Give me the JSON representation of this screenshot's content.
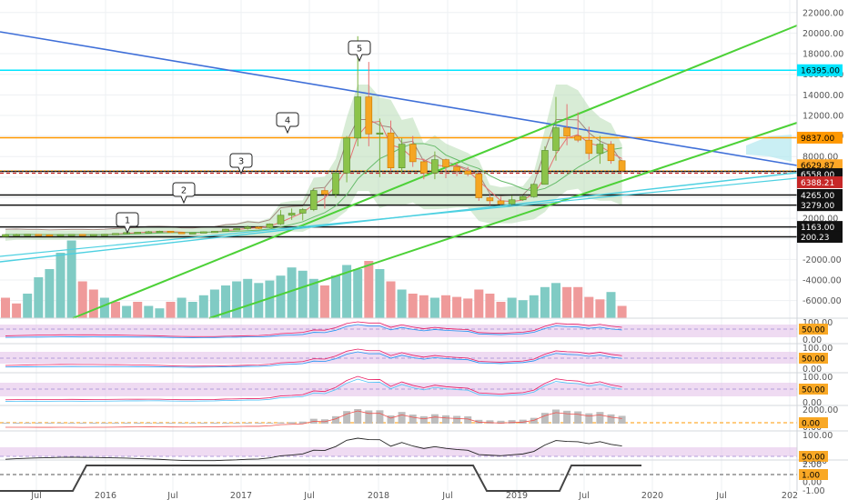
{
  "chart_data": {
    "type": "candlestick",
    "x_ticks": [
      "Jul",
      "2016",
      "Jul",
      "2017",
      "Jul",
      "2018",
      "Jul",
      "2019",
      "Jul",
      "2020",
      "Jul",
      "202"
    ],
    "y_ticks": [
      "22000.00",
      "20000.00",
      "18000.00",
      "16000.00",
      "14000.00",
      "12000.00",
      "10000.00",
      "8000.00",
      "6000.00",
      "4000.00",
      "2000.00",
      "0.00",
      "-2000.00",
      "-4000.00",
      "-6000.00"
    ],
    "ylim": [
      -7000,
      22600
    ],
    "price_labels": [
      {
        "value": 16395,
        "text": "16395.00",
        "color": "#00e5ff",
        "text_color": "#000000"
      },
      {
        "value": 9837,
        "text": "9837.00",
        "color": "#ff9800",
        "text_color": "#000000"
      },
      {
        "value": 6629.87,
        "text": "6629.87",
        "color": "#ffa726",
        "text_color": "#000000"
      },
      {
        "value": 6558,
        "text": "6558.00",
        "color": "#111111",
        "text_color": "#ffffff"
      },
      {
        "value": 6388.21,
        "text": "6388.21",
        "color": "#c62828",
        "text_color": "#ffffff"
      },
      {
        "value": 4265,
        "text": "4265.00",
        "color": "#111111",
        "text_color": "#ffffff"
      },
      {
        "value": 3279,
        "text": "3279.00",
        "color": "#111111",
        "text_color": "#ffffff"
      },
      {
        "value": 1163,
        "text": "1163.00",
        "color": "#111111",
        "text_color": "#ffffff"
      },
      {
        "value": 200.23,
        "text": "200.23",
        "color": "#111111",
        "text_color": "#ffffff"
      }
    ],
    "wave_labels": [
      "1",
      "2",
      "3",
      "4",
      "5"
    ],
    "candles": [
      {
        "o": 230,
        "c": 420,
        "h": 480,
        "l": 200
      },
      {
        "o": 420,
        "c": 430,
        "h": 500,
        "l": 380
      },
      {
        "o": 430,
        "c": 440,
        "h": 460,
        "l": 380
      },
      {
        "o": 440,
        "c": 400,
        "h": 470,
        "l": 350
      },
      {
        "o": 400,
        "c": 380,
        "h": 420,
        "l": 360
      },
      {
        "o": 380,
        "c": 420,
        "h": 440,
        "l": 360
      },
      {
        "o": 420,
        "c": 440,
        "h": 460,
        "l": 400
      },
      {
        "o": 440,
        "c": 370,
        "h": 460,
        "l": 360
      },
      {
        "o": 370,
        "c": 430,
        "h": 440,
        "l": 360
      },
      {
        "o": 430,
        "c": 450,
        "h": 480,
        "l": 420
      },
      {
        "o": 450,
        "c": 530,
        "h": 560,
        "l": 440
      },
      {
        "o": 530,
        "c": 620,
        "h": 640,
        "l": 520
      },
      {
        "o": 620,
        "c": 650,
        "h": 680,
        "l": 600
      },
      {
        "o": 650,
        "c": 700,
        "h": 780,
        "l": 630
      },
      {
        "o": 700,
        "c": 750,
        "h": 800,
        "l": 680
      },
      {
        "o": 750,
        "c": 630,
        "h": 760,
        "l": 560
      },
      {
        "o": 630,
        "c": 580,
        "h": 640,
        "l": 550
      },
      {
        "o": 580,
        "c": 600,
        "h": 620,
        "l": 560
      },
      {
        "o": 600,
        "c": 690,
        "h": 720,
        "l": 590
      },
      {
        "o": 690,
        "c": 740,
        "h": 760,
        "l": 690
      },
      {
        "o": 740,
        "c": 950,
        "h": 980,
        "l": 730
      },
      {
        "o": 950,
        "c": 1000,
        "h": 1050,
        "l": 880
      },
      {
        "o": 1000,
        "c": 1150,
        "h": 1300,
        "l": 900
      },
      {
        "o": 1150,
        "c": 1100,
        "h": 1200,
        "l": 950
      },
      {
        "o": 1100,
        "c": 1450,
        "h": 1500,
        "l": 1050
      },
      {
        "o": 1450,
        "c": 2300,
        "h": 2800,
        "l": 1350
      },
      {
        "o": 2300,
        "c": 2500,
        "h": 2950,
        "l": 1850
      },
      {
        "o": 2500,
        "c": 2850,
        "h": 3000,
        "l": 1800
      },
      {
        "o": 2850,
        "c": 4700,
        "h": 4900,
        "l": 2700
      },
      {
        "o": 4700,
        "c": 4350,
        "h": 5000,
        "l": 2950
      },
      {
        "o": 4350,
        "c": 6400,
        "h": 6500,
        "l": 4000
      },
      {
        "o": 6400,
        "c": 9800,
        "h": 10000,
        "l": 5500
      },
      {
        "o": 9800,
        "c": 13800,
        "h": 19700,
        "l": 9000
      },
      {
        "o": 13800,
        "c": 10200,
        "h": 17200,
        "l": 9000
      },
      {
        "o": 10200,
        "c": 10300,
        "h": 11700,
        "l": 6000
      },
      {
        "o": 10300,
        "c": 6900,
        "h": 11500,
        "l": 6600
      },
      {
        "o": 6900,
        "c": 9200,
        "h": 9800,
        "l": 6400
      },
      {
        "o": 9200,
        "c": 7500,
        "h": 10000,
        "l": 7000
      },
      {
        "o": 7500,
        "c": 6400,
        "h": 7800,
        "l": 5800
      },
      {
        "o": 6400,
        "c": 7700,
        "h": 8500,
        "l": 5800
      },
      {
        "o": 7700,
        "c": 7000,
        "h": 7800,
        "l": 5900
      },
      {
        "o": 7000,
        "c": 6600,
        "h": 7400,
        "l": 6100
      },
      {
        "o": 6600,
        "c": 6300,
        "h": 7000,
        "l": 6100
      },
      {
        "o": 6300,
        "c": 4000,
        "h": 6400,
        "l": 3700
      },
      {
        "o": 4000,
        "c": 3700,
        "h": 4300,
        "l": 3300
      },
      {
        "o": 3700,
        "c": 3400,
        "h": 4100,
        "l": 3300
      },
      {
        "o": 3400,
        "c": 3800,
        "h": 4200,
        "l": 3300
      },
      {
        "o": 3800,
        "c": 4100,
        "h": 4200,
        "l": 3700
      },
      {
        "o": 4100,
        "c": 5300,
        "h": 5400,
        "l": 4000
      },
      {
        "o": 5300,
        "c": 8600,
        "h": 9000,
        "l": 5300
      },
      {
        "o": 8600,
        "c": 10800,
        "h": 13800,
        "l": 7600
      },
      {
        "o": 10800,
        "c": 10000,
        "h": 13100,
        "l": 9100
      },
      {
        "o": 10000,
        "c": 9600,
        "h": 12300,
        "l": 9400
      },
      {
        "o": 9600,
        "c": 8300,
        "h": 10900,
        "l": 7700
      },
      {
        "o": 8300,
        "c": 9200,
        "h": 10000,
        "l": 7300
      },
      {
        "o": 9200,
        "c": 7600,
        "h": 9500,
        "l": 7300
      },
      {
        "o": 7600,
        "c": 6630,
        "h": 7700,
        "l": 6500
      }
    ],
    "volume": [
      {
        "v": 2500,
        "up": false
      },
      {
        "v": 1800,
        "up": false
      },
      {
        "v": 3000,
        "up": true
      },
      {
        "v": 5000,
        "up": true
      },
      {
        "v": 6000,
        "up": true
      },
      {
        "v": 8000,
        "up": true
      },
      {
        "v": 9500,
        "up": true
      },
      {
        "v": 4500,
        "up": false
      },
      {
        "v": 3500,
        "up": false
      },
      {
        "v": 2500,
        "up": true
      },
      {
        "v": 2000,
        "up": false
      },
      {
        "v": 1500,
        "up": true
      },
      {
        "v": 2000,
        "up": false
      },
      {
        "v": 1500,
        "up": true
      },
      {
        "v": 1200,
        "up": true
      },
      {
        "v": 2000,
        "up": false
      },
      {
        "v": 2500,
        "up": true
      },
      {
        "v": 2000,
        "up": true
      },
      {
        "v": 2800,
        "up": true
      },
      {
        "v": 3500,
        "up": true
      },
      {
        "v": 4000,
        "up": true
      },
      {
        "v": 4500,
        "up": true
      },
      {
        "v": 4800,
        "up": true
      },
      {
        "v": 4300,
        "up": true
      },
      {
        "v": 4600,
        "up": true
      },
      {
        "v": 5200,
        "up": true
      },
      {
        "v": 6200,
        "up": true
      },
      {
        "v": 5800,
        "up": true
      },
      {
        "v": 4800,
        "up": true
      },
      {
        "v": 4000,
        "up": false
      },
      {
        "v": 5200,
        "up": true
      },
      {
        "v": 6500,
        "up": true
      },
      {
        "v": 6000,
        "up": true
      },
      {
        "v": 7000,
        "up": false
      },
      {
        "v": 6000,
        "up": true
      },
      {
        "v": 4500,
        "up": false
      },
      {
        "v": 3500,
        "up": true
      },
      {
        "v": 3000,
        "up": false
      },
      {
        "v": 2800,
        "up": false
      },
      {
        "v": 2500,
        "up": true
      },
      {
        "v": 2800,
        "up": false
      },
      {
        "v": 2600,
        "up": false
      },
      {
        "v": 2400,
        "up": false
      },
      {
        "v": 3500,
        "up": false
      },
      {
        "v": 3000,
        "up": false
      },
      {
        "v": 2000,
        "up": false
      },
      {
        "v": 2500,
        "up": true
      },
      {
        "v": 2200,
        "up": true
      },
      {
        "v": 2800,
        "up": true
      },
      {
        "v": 3800,
        "up": true
      },
      {
        "v": 4300,
        "up": true
      },
      {
        "v": 3800,
        "up": false
      },
      {
        "v": 3800,
        "up": false
      },
      {
        "v": 2600,
        "up": false
      },
      {
        "v": 2300,
        "up": false
      },
      {
        "v": 3200,
        "up": true
      },
      {
        "v": 1500,
        "up": false
      }
    ],
    "indicator_panes": [
      {
        "ticks": [
          "100.00",
          "50.00",
          "0.00"
        ],
        "badge": "50.00"
      },
      {
        "ticks": [
          "100.00",
          "50.00",
          "0.00"
        ],
        "badge": "50.00"
      },
      {
        "ticks": [
          "100.00",
          "50.00",
          "0.00"
        ],
        "badge": "50.00"
      },
      {
        "ticks": [
          "2000.00",
          "0.00"
        ],
        "badge": "0.00"
      },
      {
        "ticks": [
          "100.00",
          "50.00"
        ],
        "badge": "50.00"
      },
      {
        "ticks": [
          "2.00",
          "1.00",
          "0.00",
          "-1.00"
        ],
        "badge": "1.00"
      }
    ]
  }
}
